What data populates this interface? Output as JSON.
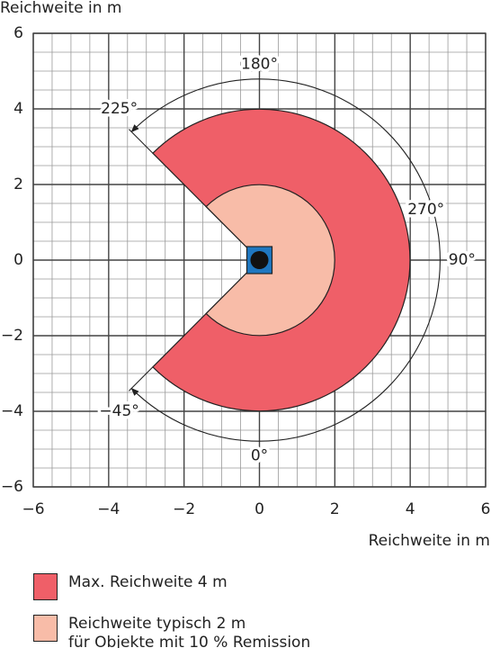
{
  "chart_data": {
    "type": "sector",
    "x_label": "Reichweite in m",
    "y_label": "Reichweite in m",
    "xlim": [
      -6,
      6
    ],
    "ylim": [
      -6,
      6
    ],
    "xticks": [
      {
        "value": -6,
        "label": "−6"
      },
      {
        "value": -4,
        "label": "−4"
      },
      {
        "value": -2,
        "label": "−2"
      },
      0,
      2,
      4,
      6
    ],
    "yticks": [
      {
        "value": -6,
        "label": "−6"
      },
      {
        "value": -4,
        "label": "−4"
      },
      {
        "value": -2,
        "label": "−2"
      },
      0,
      2,
      4,
      6
    ],
    "grid": true,
    "angle_ticks": [
      {
        "value": -45,
        "label": "−45°"
      },
      {
        "value": 0,
        "label": "0°"
      },
      {
        "value": 90,
        "label": "90°"
      },
      {
        "value": 180,
        "label": "180°"
      },
      {
        "value": 225,
        "label": "225°"
      }
    ],
    "span_label": {
      "value": 270,
      "label": "270°"
    },
    "series": [
      {
        "name": "Max. Reichweite 4 m",
        "color": "#ef5f68",
        "radius": 4
      },
      {
        "name": "Reichweite typisch 2 m\nfür Objekte mit 10 % Remission",
        "color": "#f8bca8",
        "radius": 2
      }
    ]
  }
}
